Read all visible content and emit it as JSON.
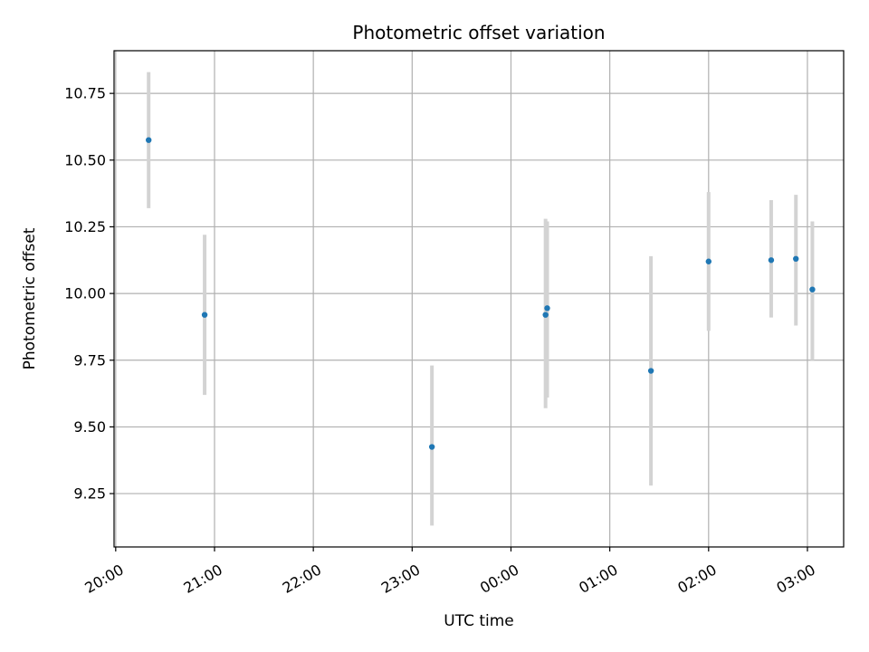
{
  "chart_data": {
    "type": "scatter",
    "title": "Photometric offset variation",
    "xlabel": "UTC time",
    "ylabel": "Photometric offset",
    "xlim": [
      "19:59",
      "03:22"
    ],
    "ylim": [
      9.05,
      10.91
    ],
    "xticks": [
      "20:00",
      "21:00",
      "22:00",
      "23:00",
      "00:00",
      "01:00",
      "02:00",
      "03:00"
    ],
    "yticks": [
      "9.25",
      "9.50",
      "9.75",
      "10.00",
      "10.25",
      "10.50",
      "10.75"
    ],
    "grid": true,
    "colors": {
      "points": "#1f77b4",
      "error_bars": "#d3d3d3",
      "grid": "#b0b0b0"
    },
    "points": [
      {
        "x": "20:20",
        "y": 10.575,
        "ylow": 10.32,
        "yhigh": 10.83
      },
      {
        "x": "20:54",
        "y": 9.92,
        "ylow": 9.62,
        "yhigh": 10.22
      },
      {
        "x": "23:12",
        "y": 9.425,
        "ylow": 9.13,
        "yhigh": 9.73
      },
      {
        "x": "00:21",
        "y": 9.92,
        "ylow": 9.57,
        "yhigh": 10.28
      },
      {
        "x": "00:22",
        "y": 9.945,
        "ylow": 9.61,
        "yhigh": 10.27
      },
      {
        "x": "01:25",
        "y": 9.71,
        "ylow": 9.28,
        "yhigh": 10.14
      },
      {
        "x": "02:00",
        "y": 10.12,
        "ylow": 9.86,
        "yhigh": 10.38
      },
      {
        "x": "02:38",
        "y": 10.125,
        "ylow": 9.91,
        "yhigh": 10.35
      },
      {
        "x": "02:53",
        "y": 10.13,
        "ylow": 9.88,
        "yhigh": 10.37
      },
      {
        "x": "03:03",
        "y": 10.015,
        "ylow": 9.75,
        "yhigh": 10.27
      }
    ]
  }
}
